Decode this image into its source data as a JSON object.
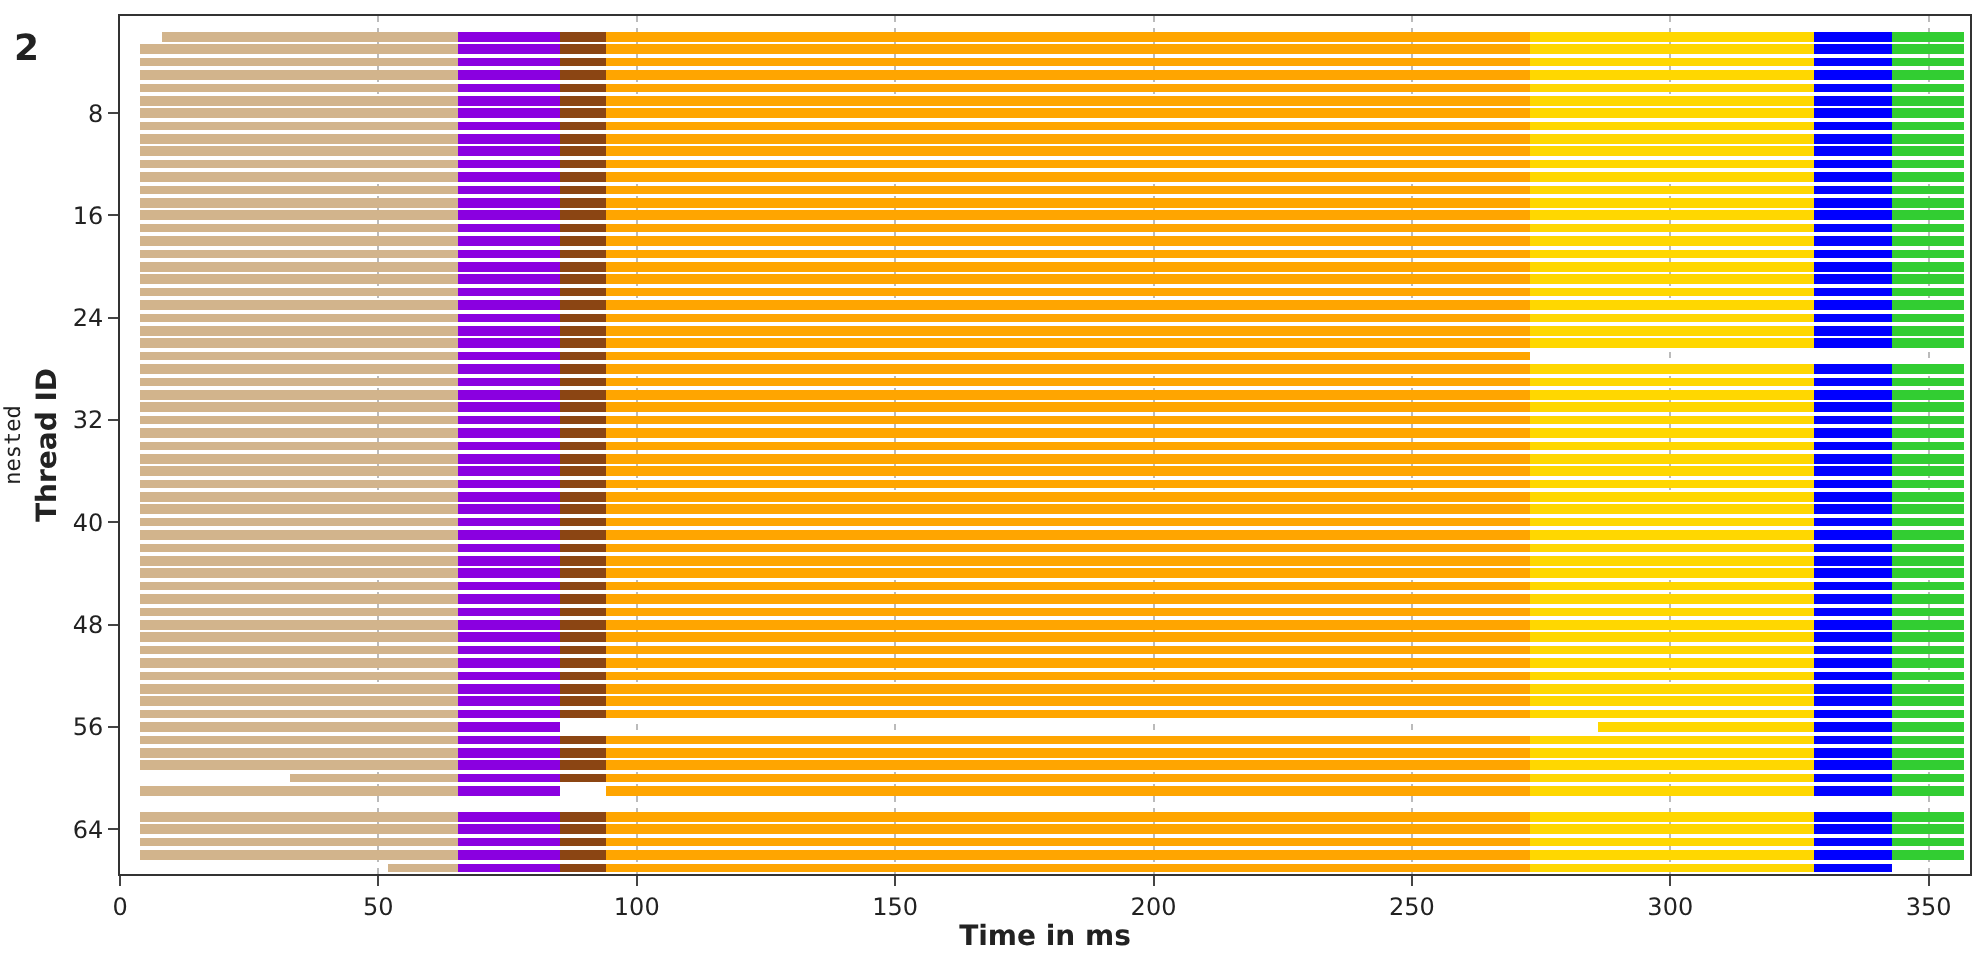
{
  "chart_data": {
    "type": "bar",
    "orientation": "horizontal",
    "xlabel": "Time in ms",
    "ylabel": "nested\nThread ID",
    "annotations": [
      "2"
    ],
    "categories": [
      null,
      null,
      null,
      null,
      null,
      null,
      "8",
      null,
      null,
      null,
      null,
      null,
      null,
      null,
      "16",
      null,
      null,
      null,
      null,
      null,
      null,
      null,
      "24",
      null,
      null,
      null,
      null,
      null,
      null,
      null,
      "32",
      null,
      null,
      null,
      null,
      null,
      null,
      null,
      "40",
      null,
      null,
      null,
      null,
      null,
      null,
      null,
      "48",
      null,
      null,
      null,
      null,
      null,
      null,
      null,
      "56",
      null,
      null,
      null,
      null,
      null,
      null,
      null,
      "64",
      null,
      null,
      null
    ],
    "xlim": [
      0,
      358
    ],
    "xticks": [
      0,
      50,
      100,
      150,
      200,
      250,
      300,
      350
    ],
    "grid": "x",
    "series": [
      {
        "color": "#d2b48c",
        "base": [
          8,
          4,
          4,
          4,
          4,
          4,
          4,
          4,
          4,
          4,
          4,
          4,
          4,
          4,
          4,
          4,
          4,
          4,
          4,
          4,
          4,
          4,
          4,
          4,
          4,
          4,
          4,
          4,
          4,
          4,
          4,
          4,
          4,
          4,
          4,
          4,
          4,
          4,
          4,
          4,
          4,
          4,
          4,
          4,
          4,
          4,
          4,
          4,
          4,
          4,
          4,
          4,
          4,
          4,
          4,
          4,
          4,
          4,
          33,
          4,
          null,
          4,
          4,
          4,
          4,
          52
        ],
        "values": [
          57.5,
          61.5,
          61.5,
          61.5,
          61.5,
          61.5,
          61.5,
          61.5,
          61.5,
          61.5,
          61.5,
          61.5,
          61.5,
          61.5,
          61.5,
          61.5,
          61.5,
          61.5,
          61.5,
          61.5,
          61.5,
          61.5,
          61.5,
          61.5,
          61.5,
          61.5,
          61.5,
          61.5,
          61.5,
          61.5,
          61.5,
          61.5,
          61.5,
          61.5,
          61.5,
          61.5,
          61.5,
          61.5,
          61.5,
          61.5,
          61.5,
          61.5,
          61.5,
          61.5,
          61.5,
          61.5,
          61.5,
          61.5,
          61.5,
          61.5,
          61.5,
          61.5,
          61.5,
          61.5,
          61.5,
          61.5,
          61.5,
          61.5,
          32.5,
          61.5,
          null,
          61.5,
          61.5,
          61.5,
          61.5,
          13.5
        ]
      },
      {
        "color": "#8a00e0",
        "base": [
          65.5,
          65.5,
          65.5,
          65.5,
          65.5,
          65.5,
          65.5,
          65.5,
          65.5,
          65.5,
          65.5,
          65.5,
          65.5,
          65.5,
          65.5,
          65.5,
          65.5,
          65.5,
          65.5,
          65.5,
          65.5,
          65.5,
          65.5,
          65.5,
          65.5,
          65.5,
          65.5,
          65.5,
          65.5,
          65.5,
          65.5,
          65.5,
          65.5,
          65.5,
          65.5,
          65.5,
          65.5,
          65.5,
          65.5,
          65.5,
          65.5,
          65.5,
          65.5,
          65.5,
          65.5,
          65.5,
          65.5,
          65.5,
          65.5,
          65.5,
          65.5,
          65.5,
          65.5,
          65.5,
          65.5,
          65.5,
          65.5,
          65.5,
          65.5,
          65.5,
          null,
          65.5,
          65.5,
          65.5,
          65.5,
          65.5
        ],
        "values": [
          19.5,
          19.5,
          19.5,
          19.5,
          19.5,
          19.5,
          19.5,
          19.5,
          19.5,
          19.5,
          19.5,
          19.5,
          19.5,
          19.5,
          19.5,
          19.5,
          19.5,
          19.5,
          19.5,
          19.5,
          19.5,
          19.5,
          19.5,
          19.5,
          19.5,
          19.5,
          19.5,
          19.5,
          19.5,
          19.5,
          19.5,
          19.5,
          19.5,
          19.5,
          19.5,
          19.5,
          19.5,
          19.5,
          19.5,
          19.5,
          19.5,
          19.5,
          19.5,
          19.5,
          19.5,
          19.5,
          19.5,
          19.5,
          19.5,
          19.5,
          19.5,
          19.5,
          19.5,
          19.5,
          19.5,
          19.5,
          19.5,
          19.5,
          19.5,
          19.5,
          null,
          19.5,
          19.5,
          19.5,
          19.5,
          19.5
        ]
      },
      {
        "color": "#8b4513",
        "base": [
          85,
          85,
          85,
          85,
          85,
          85,
          85,
          85,
          85,
          85,
          85,
          85,
          85,
          85,
          85,
          85,
          85,
          85,
          85,
          85,
          85,
          85,
          85,
          85,
          85,
          85,
          85,
          85,
          85,
          85,
          85,
          85,
          85,
          85,
          85,
          85,
          85,
          85,
          85,
          85,
          85,
          85,
          85,
          85,
          85,
          85,
          85,
          85,
          85,
          85,
          85,
          85,
          85,
          85,
          null,
          85,
          85,
          85,
          85,
          null,
          null,
          85,
          85,
          85,
          85,
          85
        ],
        "values": [
          9,
          9,
          9,
          9,
          9,
          9,
          9,
          9,
          9,
          9,
          9,
          9,
          9,
          9,
          9,
          9,
          9,
          9,
          9,
          9,
          9,
          9,
          9,
          9,
          9,
          9,
          9,
          9,
          9,
          9,
          9,
          9,
          9,
          9,
          9,
          9,
          9,
          9,
          9,
          9,
          9,
          9,
          9,
          9,
          9,
          9,
          9,
          9,
          9,
          9,
          9,
          9,
          9,
          9,
          null,
          9,
          9,
          9,
          9,
          null,
          null,
          9,
          9,
          9,
          9,
          9
        ]
      },
      {
        "color": "#ffa500",
        "base": [
          94,
          94,
          94,
          94,
          94,
          94,
          94,
          94,
          94,
          94,
          94,
          94,
          94,
          94,
          94,
          94,
          94,
          94,
          94,
          94,
          94,
          94,
          94,
          94,
          94,
          94,
          94,
          94,
          94,
          94,
          94,
          94,
          94,
          94,
          94,
          94,
          94,
          94,
          94,
          94,
          94,
          94,
          94,
          94,
          94,
          94,
          94,
          94,
          94,
          94,
          94,
          94,
          94,
          94,
          null,
          94,
          94,
          94,
          94,
          94,
          null,
          94,
          94,
          94,
          94,
          94
        ],
        "values": [
          179,
          179,
          179,
          179,
          179,
          179,
          179,
          179,
          179,
          179,
          179,
          179,
          179,
          179,
          179,
          179,
          179,
          179,
          179,
          179,
          179,
          179,
          179,
          179,
          179,
          179,
          179,
          179,
          179,
          179,
          179,
          179,
          179,
          179,
          179,
          179,
          179,
          179,
          179,
          179,
          179,
          179,
          179,
          179,
          179,
          179,
          179,
          179,
          179,
          179,
          179,
          179,
          179,
          179,
          null,
          179,
          179,
          179,
          179,
          179,
          null,
          179,
          179,
          179,
          179,
          179
        ]
      },
      {
        "color": "#ffd700",
        "base": [
          273,
          273,
          273,
          273,
          273,
          273,
          273,
          273,
          273,
          273,
          273,
          273,
          273,
          273,
          273,
          273,
          273,
          273,
          273,
          273,
          273,
          273,
          273,
          273,
          273,
          null,
          273,
          273,
          273,
          273,
          273,
          273,
          273,
          273,
          273,
          273,
          273,
          273,
          273,
          273,
          273,
          273,
          273,
          273,
          273,
          273,
          273,
          273,
          273,
          273,
          273,
          273,
          273,
          273,
          286,
          273,
          273,
          273,
          273,
          273,
          null,
          273,
          273,
          273,
          273,
          273
        ],
        "values": [
          55,
          55,
          55,
          55,
          55,
          55,
          55,
          55,
          55,
          55,
          55,
          55,
          55,
          55,
          55,
          55,
          55,
          55,
          55,
          55,
          55,
          55,
          55,
          55,
          55,
          null,
          55,
          55,
          55,
          55,
          55,
          55,
          55,
          55,
          55,
          55,
          55,
          55,
          55,
          55,
          55,
          55,
          55,
          55,
          55,
          55,
          55,
          55,
          55,
          55,
          55,
          55,
          55,
          55,
          42,
          55,
          55,
          55,
          55,
          55,
          null,
          55,
          55,
          55,
          55,
          55
        ]
      },
      {
        "color": "#0000ff",
        "base": [
          328,
          328,
          328,
          328,
          328,
          328,
          328,
          328,
          328,
          328,
          328,
          328,
          328,
          328,
          328,
          328,
          328,
          328,
          328,
          328,
          328,
          328,
          328,
          328,
          328,
          null,
          328,
          328,
          328,
          328,
          328,
          328,
          328,
          328,
          328,
          328,
          328,
          328,
          328,
          328,
          328,
          328,
          328,
          328,
          328,
          328,
          328,
          328,
          328,
          328,
          328,
          328,
          328,
          328,
          328,
          328,
          328,
          328,
          328,
          328,
          null,
          328,
          328,
          328,
          328,
          328
        ],
        "values": [
          15,
          15,
          15,
          15,
          15,
          15,
          15,
          15,
          15,
          15,
          15,
          15,
          15,
          15,
          15,
          15,
          15,
          15,
          15,
          15,
          15,
          15,
          15,
          15,
          15,
          null,
          15,
          15,
          15,
          15,
          15,
          15,
          15,
          15,
          15,
          15,
          15,
          15,
          15,
          15,
          15,
          15,
          15,
          15,
          15,
          15,
          15,
          15,
          15,
          15,
          15,
          15,
          15,
          15,
          15,
          15,
          15,
          15,
          15,
          15,
          null,
          15,
          15,
          15,
          15,
          15
        ]
      },
      {
        "color": "#32cd32",
        "base": [
          343,
          343,
          343,
          343,
          343,
          343,
          343,
          343,
          343,
          343,
          343,
          343,
          343,
          343,
          343,
          343,
          343,
          343,
          343,
          343,
          343,
          343,
          343,
          343,
          343,
          null,
          343,
          343,
          343,
          343,
          343,
          343,
          343,
          343,
          343,
          343,
          343,
          343,
          343,
          343,
          343,
          343,
          343,
          343,
          343,
          343,
          343,
          343,
          343,
          343,
          343,
          343,
          343,
          343,
          343,
          343,
          343,
          343,
          343,
          343,
          null,
          343,
          343,
          343,
          343,
          null
        ],
        "values": [
          14,
          14,
          14,
          14,
          14,
          14,
          14,
          14,
          14,
          14,
          14,
          14,
          14,
          14,
          14,
          14,
          14,
          14,
          14,
          14,
          14,
          14,
          14,
          14,
          14,
          null,
          14,
          14,
          14,
          14,
          14,
          14,
          14,
          14,
          14,
          14,
          14,
          14,
          14,
          14,
          14,
          14,
          14,
          14,
          14,
          14,
          14,
          14,
          14,
          14,
          14,
          14,
          14,
          14,
          14,
          14,
          14,
          14,
          14,
          14,
          null,
          14,
          14,
          14,
          14,
          null
        ]
      }
    ]
  }
}
